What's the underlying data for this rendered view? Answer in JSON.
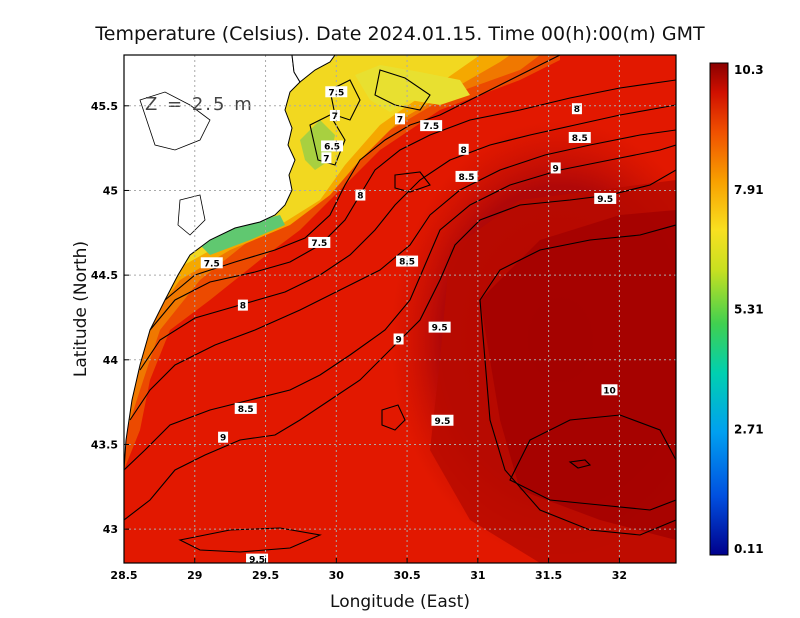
{
  "title": "Temperature (Celsius). Date 2024.01.15. Time 00(h):00(m) GMT",
  "depth_label": "Z = 2.5 m",
  "xlabel": "Longitude (East)",
  "ylabel": "Latitude (North)",
  "x_ticks": [
    "28.5",
    "29",
    "29.5",
    "30",
    "30.5",
    "31",
    "31.5",
    "32"
  ],
  "y_ticks": [
    "45.5",
    "45",
    "44.5",
    "44",
    "43.5",
    "43"
  ],
  "colorbar_ticks": [
    "10.3",
    "7.91",
    "5.31",
    "2.71",
    "0.11"
  ],
  "contour_labels": [
    {
      "text": "7.5",
      "lon": 30.0,
      "lat": 45.58
    },
    {
      "text": "7",
      "lon": 29.99,
      "lat": 45.44
    },
    {
      "text": "7",
      "lon": 30.45,
      "lat": 45.42
    },
    {
      "text": "7.5",
      "lon": 30.67,
      "lat": 45.38
    },
    {
      "text": "6.5",
      "lon": 29.97,
      "lat": 45.26
    },
    {
      "text": "7",
      "lon": 29.93,
      "lat": 45.19
    },
    {
      "text": "8",
      "lon": 30.9,
      "lat": 45.24
    },
    {
      "text": "8.5",
      "lon": 30.92,
      "lat": 45.08
    },
    {
      "text": "8",
      "lon": 30.17,
      "lat": 44.97
    },
    {
      "text": "8",
      "lon": 31.7,
      "lat": 45.48
    },
    {
      "text": "8.5",
      "lon": 31.72,
      "lat": 45.31
    },
    {
      "text": "9",
      "lon": 31.55,
      "lat": 45.13
    },
    {
      "text": "9.5",
      "lon": 31.9,
      "lat": 44.95
    },
    {
      "text": "7.5",
      "lon": 29.88,
      "lat": 44.69
    },
    {
      "text": "7.5",
      "lon": 29.12,
      "lat": 44.57
    },
    {
      "text": "8.5",
      "lon": 30.5,
      "lat": 44.58
    },
    {
      "text": "8",
      "lon": 29.34,
      "lat": 44.32
    },
    {
      "text": "9.5",
      "lon": 30.73,
      "lat": 44.19
    },
    {
      "text": "9",
      "lon": 30.44,
      "lat": 44.12
    },
    {
      "text": "10",
      "lon": 31.93,
      "lat": 43.82
    },
    {
      "text": "8.5",
      "lon": 29.36,
      "lat": 43.71
    },
    {
      "text": "9.5",
      "lon": 30.75,
      "lat": 43.64
    },
    {
      "text": "9",
      "lon": 29.2,
      "lat": 43.54
    },
    {
      "text": "9.5",
      "lon": 29.44,
      "lat": 42.82
    }
  ],
  "colors": {
    "warmest": "#9a0000",
    "warm": "#e41a00",
    "orange": "#f58a00",
    "yellow": "#f0e020",
    "cold": "#00008c",
    "land": "#ffffff"
  }
}
